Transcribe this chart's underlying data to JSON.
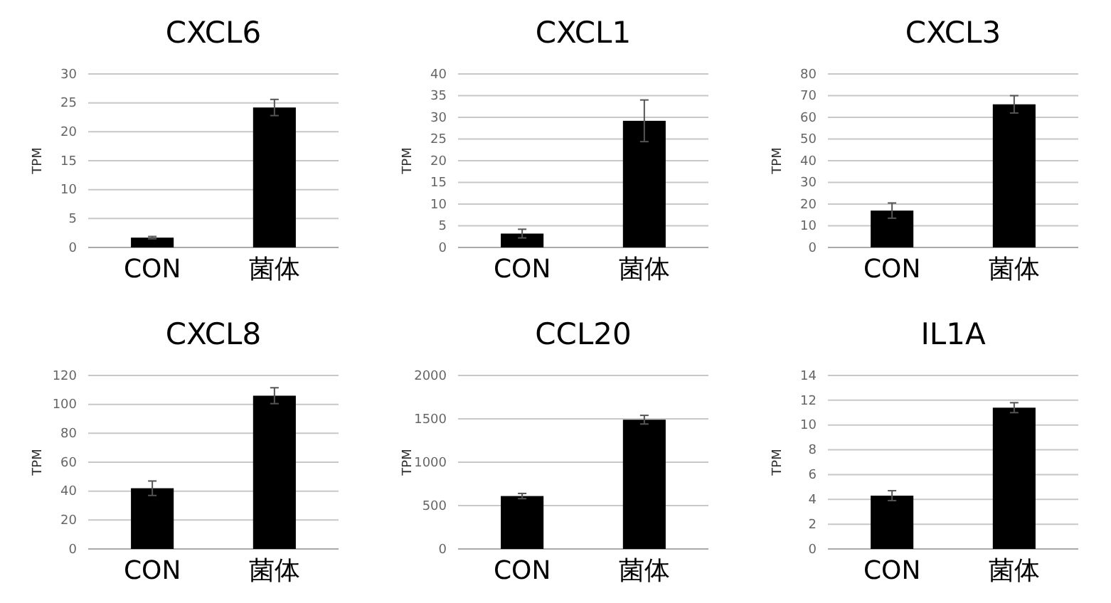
{
  "chart_data": [
    {
      "type": "bar",
      "title": "CXCL6",
      "ylabel": "TPM",
      "categories": [
        "CON",
        "菌体"
      ],
      "values": [
        1.7,
        24.2
      ],
      "errors": [
        0.2,
        1.4
      ],
      "color": "#000000",
      "ylim": [
        0,
        30
      ],
      "yticks": [
        0,
        5,
        10,
        15,
        20,
        25,
        30
      ],
      "grid": "y"
    },
    {
      "type": "bar",
      "title": "CXCL1",
      "ylabel": "TPM",
      "categories": [
        "CON",
        "菌体"
      ],
      "values": [
        3.2,
        29.2
      ],
      "errors": [
        1,
        4.8
      ],
      "color": "#000000",
      "ylim": [
        0,
        40
      ],
      "yticks": [
        0,
        5,
        10,
        15,
        20,
        25,
        30,
        35,
        40
      ],
      "grid": "y"
    },
    {
      "type": "bar",
      "title": "CXCL3",
      "ylabel": "TPM",
      "categories": [
        "CON",
        "菌体"
      ],
      "values": [
        17,
        66
      ],
      "errors": [
        3.5,
        4
      ],
      "color": "#000000",
      "ylim": [
        0,
        80
      ],
      "yticks": [
        0,
        10,
        20,
        30,
        40,
        50,
        60,
        70,
        80
      ],
      "grid": "y"
    },
    {
      "type": "bar",
      "title": "CXCL8",
      "ylabel": "TPM",
      "categories": [
        "CON",
        "菌体"
      ],
      "values": [
        42,
        106
      ],
      "errors": [
        5,
        5.5
      ],
      "color": "#000000",
      "ylim": [
        0,
        120
      ],
      "yticks": [
        0,
        20,
        40,
        60,
        80,
        100,
        120
      ],
      "grid": "y"
    },
    {
      "type": "bar",
      "title": "CCL20",
      "ylabel": "TPM",
      "categories": [
        "CON",
        "菌体"
      ],
      "values": [
        610,
        1490
      ],
      "errors": [
        30,
        50
      ],
      "color": "#000000",
      "ylim": [
        0,
        2000
      ],
      "yticks": [
        0,
        500,
        1000,
        1500,
        2000
      ],
      "grid": "y"
    },
    {
      "type": "bar",
      "title": "IL1A",
      "ylabel": "TPM",
      "categories": [
        "CON",
        "菌体"
      ],
      "values": [
        4.3,
        11.4
      ],
      "errors": [
        0.4,
        0.4
      ],
      "color": "#000000",
      "ylim": [
        0,
        14
      ],
      "yticks": [
        0,
        2,
        4,
        6,
        8,
        10,
        12,
        14
      ],
      "grid": "y"
    }
  ]
}
